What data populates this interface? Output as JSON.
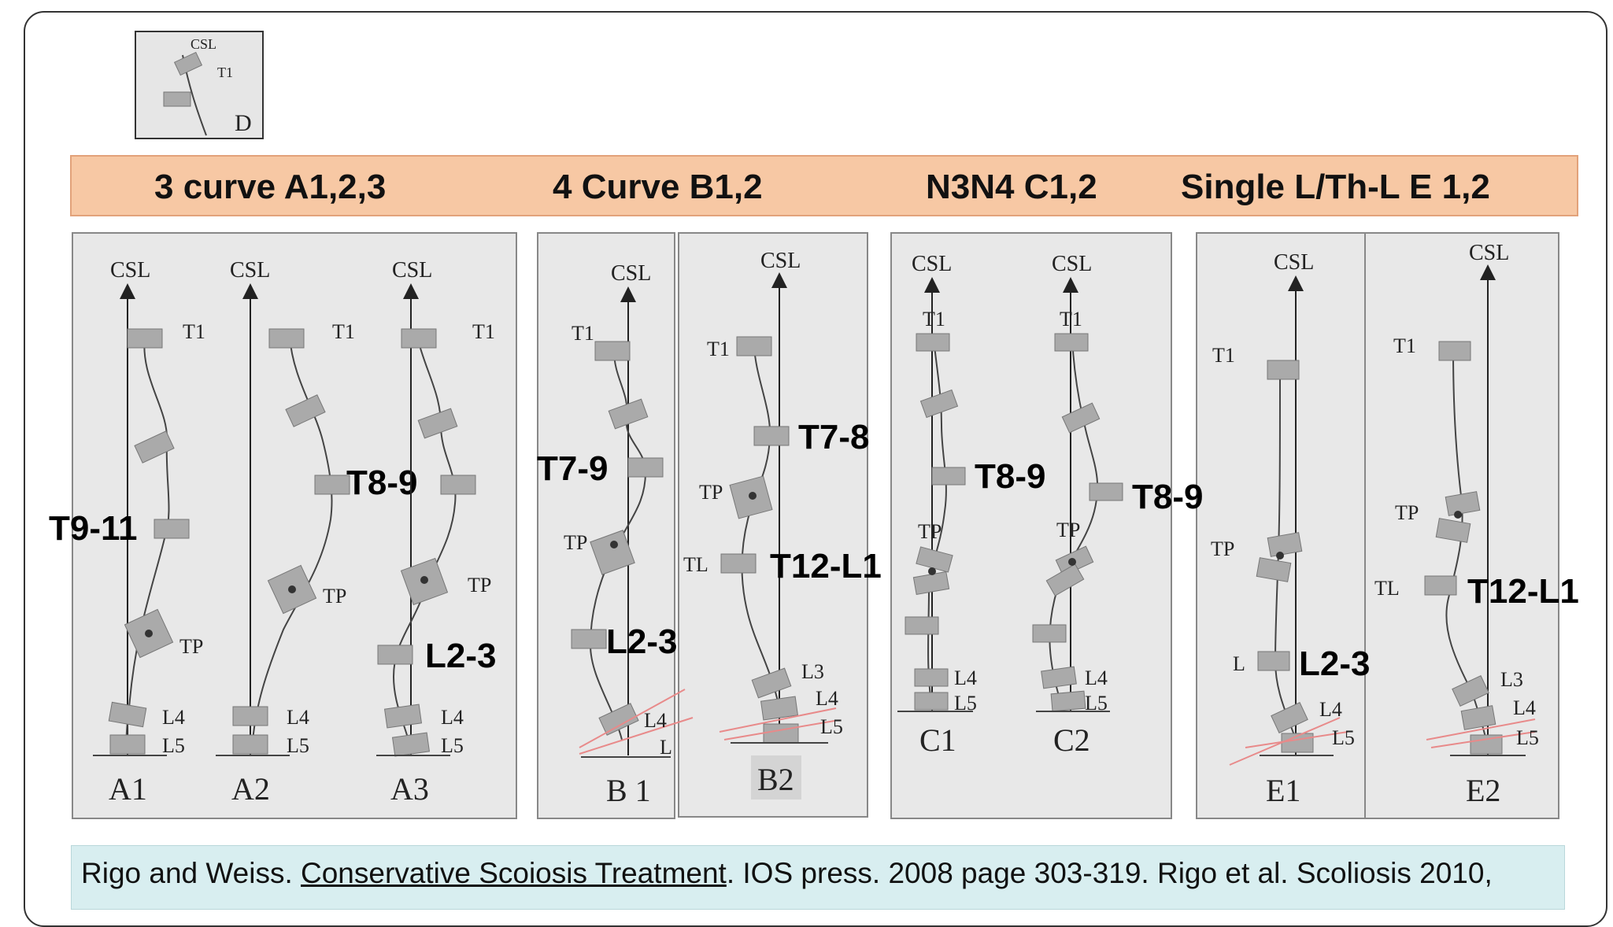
{
  "legend_box": {
    "top_label": "CSL",
    "vert_label": "T1",
    "letter": "D"
  },
  "header": {
    "groups": [
      "3 curve A1,2,3",
      "4 Curve B1,2",
      "N3N4 C1,2",
      "Single L/Th-L  E 1,2"
    ]
  },
  "diagrams": {
    "A1": {
      "title": "CSL",
      "name": "A1",
      "t1": "T1",
      "apex": "T9-11",
      "tp": "TP",
      "l4": "L4",
      "l5": "L5"
    },
    "A2": {
      "title": "CSL",
      "name": "A2",
      "t1": "T1",
      "apex": "T8-9",
      "tp": "TP",
      "l4": "L4",
      "l5": "L5"
    },
    "A3": {
      "title": "CSL",
      "name": "A3",
      "t1": "T1",
      "tp": "TP",
      "lumbar": "L2-3",
      "l4": "L4",
      "l5": "L5"
    },
    "B1": {
      "title": "CSL",
      "name": "B 1",
      "t1": "T1",
      "apex": "T7-9",
      "tp": "TP",
      "lumbar": "L2-3",
      "l4": "L4",
      "l": "L"
    },
    "B2": {
      "title": "CSL",
      "name": "B2",
      "t1": "T1",
      "apex": "T7-8",
      "tp": "TP",
      "tl": "TL",
      "tl_apex": "T12-L1",
      "l3": "L3",
      "l4": "L4",
      "l5": "L5"
    },
    "C1": {
      "title": "CSL",
      "name": "C1",
      "t1": "T1",
      "apex": "T8-9",
      "tp": "TP",
      "l4": "L4",
      "l5": "L5"
    },
    "C2": {
      "title": "CSL",
      "name": "C2",
      "t1": "T1",
      "apex": "T8-9",
      "tp": "TP",
      "l4": "L4",
      "l5": "L5"
    },
    "E1": {
      "title": "CSL",
      "name": "E1",
      "t1": "T1",
      "tp": "TP",
      "l": "L",
      "lumbar": "L2-3",
      "l4": "L4",
      "l5": "L5"
    },
    "E2": {
      "title": "CSL",
      "name": "E2",
      "t1": "T1",
      "tp": "TP",
      "tl": "TL",
      "tl_apex": "T12-L1",
      "l3": "L3",
      "l4": "L4",
      "l5": "L5"
    }
  },
  "citation": {
    "pre": "Rigo and Weiss. ",
    "title": "Conservative Scoiosis Treatment",
    "post": ". IOS press. 2008 page 303-319. Rigo et al. Scoliosis 2010,"
  },
  "colors": {
    "header_bg": "#f7c8a4",
    "panel_bg": "#e8e8e8",
    "vertebra": "#aaaaaa",
    "citation_bg": "#d8eef0",
    "pelvis_line": "#e88a8a"
  }
}
